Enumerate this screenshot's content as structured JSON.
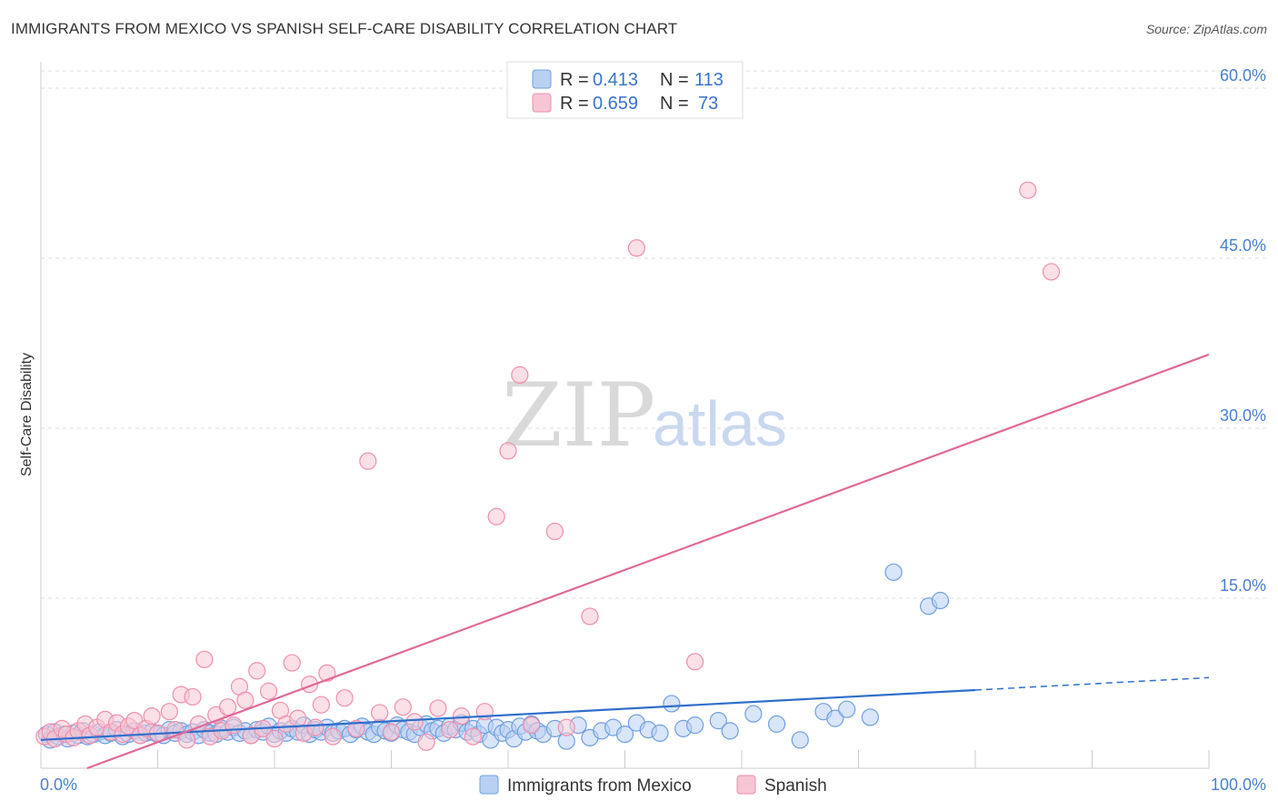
{
  "title": "IMMIGRANTS FROM MEXICO VS SPANISH SELF-CARE DISABILITY CORRELATION CHART",
  "source": "Source: ZipAtlas.com",
  "watermark": {
    "zip": "ZIP",
    "atlas": "atlas"
  },
  "legend": {
    "rows": [
      {
        "r_label": "R =",
        "r_value": "0.413",
        "n_label": "N =",
        "n_value": "113",
        "color": "#6fa0e0"
      },
      {
        "r_label": "R =",
        "r_value": "0.659",
        "n_label": "N =",
        "n_value": "73",
        "color": "#ef8fad"
      }
    ]
  },
  "chart_data": {
    "type": "scatter",
    "title": "IMMIGRANTS FROM MEXICO VS SPANISH SELF-CARE DISABILITY CORRELATION CHART",
    "xlabel": "",
    "ylabel": "Self-Care Disability",
    "xlim": [
      0,
      100
    ],
    "ylim": [
      0,
      63
    ],
    "x_tick_labels": [
      "0.0%",
      "100.0%"
    ],
    "y_ticks": [
      15,
      30,
      45,
      60
    ],
    "y_tick_labels": [
      "15.0%",
      "30.0%",
      "45.0%",
      "60.0%"
    ],
    "colors": {
      "mexico_fill": "#b9d0f2",
      "mexico_stroke": "#6fa0e0",
      "mexico_line": "#2f6fcc",
      "spanish_fill": "#f7c6d4",
      "spanish_stroke": "#ef8fad",
      "spanish_line": "#e0699a"
    },
    "series": [
      {
        "name": "Immigrants from Mexico",
        "r": 0.413,
        "n": 113,
        "trend": {
          "x0": 0,
          "y0": 2.5,
          "x1": 80,
          "y1": 6.9,
          "dashed_to_x": 100,
          "dashed_to_y": 8.0
        },
        "points": [
          [
            0.5,
            3.0
          ],
          [
            0.8,
            2.5
          ],
          [
            1.2,
            3.2
          ],
          [
            1.5,
            2.8
          ],
          [
            2.0,
            3.0
          ],
          [
            2.3,
            2.6
          ],
          [
            2.8,
            3.1
          ],
          [
            3.2,
            2.9
          ],
          [
            3.6,
            3.3
          ],
          [
            4.0,
            2.8
          ],
          [
            4.5,
            3.0
          ],
          [
            5.0,
            3.2
          ],
          [
            5.5,
            2.9
          ],
          [
            6.0,
            3.1
          ],
          [
            6.5,
            3.4
          ],
          [
            7.0,
            2.8
          ],
          [
            7.5,
            3.0
          ],
          [
            8.0,
            3.3
          ],
          [
            8.5,
            2.9
          ],
          [
            9.0,
            3.1
          ],
          [
            9.5,
            3.2
          ],
          [
            10.0,
            3.0
          ],
          [
            10.5,
            2.9
          ],
          [
            11.0,
            3.4
          ],
          [
            11.5,
            3.1
          ],
          [
            12.0,
            3.3
          ],
          [
            12.5,
            3.0
          ],
          [
            13.0,
            3.2
          ],
          [
            13.5,
            2.9
          ],
          [
            14.0,
            3.4
          ],
          [
            14.5,
            3.1
          ],
          [
            15.0,
            3.0
          ],
          [
            15.5,
            3.5
          ],
          [
            16.0,
            3.2
          ],
          [
            16.5,
            3.6
          ],
          [
            17.0,
            3.1
          ],
          [
            17.5,
            3.3
          ],
          [
            18.0,
            2.9
          ],
          [
            18.5,
            3.4
          ],
          [
            19.0,
            3.2
          ],
          [
            19.5,
            3.7
          ],
          [
            20.0,
            3.0
          ],
          [
            20.5,
            3.3
          ],
          [
            21.0,
            3.1
          ],
          [
            21.5,
            3.5
          ],
          [
            22.0,
            3.2
          ],
          [
            22.5,
            3.8
          ],
          [
            23.0,
            3.0
          ],
          [
            23.5,
            3.4
          ],
          [
            24.0,
            3.2
          ],
          [
            24.5,
            3.6
          ],
          [
            25.0,
            3.1
          ],
          [
            25.5,
            3.3
          ],
          [
            26.0,
            3.5
          ],
          [
            26.5,
            3.0
          ],
          [
            27.0,
            3.4
          ],
          [
            27.5,
            3.7
          ],
          [
            28.0,
            3.2
          ],
          [
            28.5,
            3.0
          ],
          [
            29.0,
            3.6
          ],
          [
            29.5,
            3.3
          ],
          [
            30.0,
            3.1
          ],
          [
            30.5,
            3.8
          ],
          [
            31.0,
            3.4
          ],
          [
            31.5,
            3.2
          ],
          [
            32.0,
            3.0
          ],
          [
            32.5,
            3.6
          ],
          [
            33.0,
            3.9
          ],
          [
            33.5,
            3.3
          ],
          [
            34.0,
            3.5
          ],
          [
            34.5,
            3.1
          ],
          [
            35.0,
            3.7
          ],
          [
            35.5,
            3.4
          ],
          [
            36.0,
            4.0
          ],
          [
            36.5,
            3.2
          ],
          [
            37.0,
            3.5
          ],
          [
            37.5,
            3.0
          ],
          [
            38.0,
            3.8
          ],
          [
            38.5,
            2.5
          ],
          [
            39.0,
            3.6
          ],
          [
            39.5,
            3.1
          ],
          [
            40.0,
            3.4
          ],
          [
            40.5,
            2.6
          ],
          [
            41.0,
            3.7
          ],
          [
            41.5,
            3.2
          ],
          [
            42.0,
            3.9
          ],
          [
            42.5,
            3.3
          ],
          [
            43.0,
            3.0
          ],
          [
            44.0,
            3.5
          ],
          [
            45.0,
            2.4
          ],
          [
            46.0,
            3.8
          ],
          [
            47.0,
            2.7
          ],
          [
            48.0,
            3.3
          ],
          [
            49.0,
            3.6
          ],
          [
            50.0,
            3.0
          ],
          [
            51.0,
            4.0
          ],
          [
            52.0,
            3.4
          ],
          [
            53.0,
            3.1
          ],
          [
            54.0,
            5.7
          ],
          [
            55.0,
            3.5
          ],
          [
            56.0,
            3.8
          ],
          [
            58.0,
            4.2
          ],
          [
            59.0,
            3.3
          ],
          [
            61.0,
            4.8
          ],
          [
            63.0,
            3.9
          ],
          [
            65.0,
            2.5
          ],
          [
            67.0,
            5.0
          ],
          [
            68.0,
            4.4
          ],
          [
            69.0,
            5.2
          ],
          [
            71.0,
            4.5
          ],
          [
            73.0,
            17.3
          ],
          [
            76.0,
            14.3
          ],
          [
            77.0,
            14.8
          ]
        ]
      },
      {
        "name": "Spanish",
        "r": 0.659,
        "n": 73,
        "trend": {
          "x0": 0,
          "y0": -1.5,
          "x1": 100,
          "y1": 36.5
        },
        "points": [
          [
            0.3,
            2.8
          ],
          [
            0.8,
            3.2
          ],
          [
            1.2,
            2.6
          ],
          [
            1.8,
            3.5
          ],
          [
            2.2,
            3.0
          ],
          [
            2.8,
            2.7
          ],
          [
            3.2,
            3.3
          ],
          [
            3.8,
            3.9
          ],
          [
            4.2,
            2.9
          ],
          [
            4.8,
            3.6
          ],
          [
            5.5,
            4.3
          ],
          [
            6.0,
            3.2
          ],
          [
            6.5,
            4.0
          ],
          [
            7.0,
            3.0
          ],
          [
            7.5,
            3.7
          ],
          [
            8.0,
            4.2
          ],
          [
            8.5,
            2.9
          ],
          [
            9.0,
            3.5
          ],
          [
            9.5,
            4.6
          ],
          [
            10.0,
            3.1
          ],
          [
            11.0,
            5.0
          ],
          [
            11.5,
            3.4
          ],
          [
            12.0,
            6.5
          ],
          [
            12.5,
            2.5
          ],
          [
            13.0,
            6.3
          ],
          [
            13.5,
            3.9
          ],
          [
            14.0,
            9.6
          ],
          [
            14.5,
            2.8
          ],
          [
            15.0,
            4.7
          ],
          [
            15.5,
            3.3
          ],
          [
            16.0,
            5.4
          ],
          [
            16.5,
            3.8
          ],
          [
            17.0,
            7.2
          ],
          [
            17.5,
            6.0
          ],
          [
            18.0,
            2.9
          ],
          [
            18.5,
            8.6
          ],
          [
            19.0,
            3.5
          ],
          [
            19.5,
            6.8
          ],
          [
            20.0,
            2.6
          ],
          [
            20.5,
            5.1
          ],
          [
            21.0,
            3.9
          ],
          [
            21.5,
            9.3
          ],
          [
            22.0,
            4.4
          ],
          [
            22.5,
            3.1
          ],
          [
            23.0,
            7.4
          ],
          [
            23.5,
            3.6
          ],
          [
            24.0,
            5.6
          ],
          [
            24.5,
            8.4
          ],
          [
            25.0,
            2.8
          ],
          [
            26.0,
            6.2
          ],
          [
            27.0,
            3.5
          ],
          [
            28.0,
            27.1
          ],
          [
            29.0,
            4.9
          ],
          [
            30.0,
            3.2
          ],
          [
            31.0,
            5.4
          ],
          [
            32.0,
            4.1
          ],
          [
            33.0,
            2.3
          ],
          [
            34.0,
            5.3
          ],
          [
            35.0,
            3.4
          ],
          [
            36.0,
            4.6
          ],
          [
            37.0,
            2.8
          ],
          [
            38.0,
            5.0
          ],
          [
            39.0,
            22.2
          ],
          [
            40.0,
            28.0
          ],
          [
            41.0,
            34.7
          ],
          [
            42.0,
            3.8
          ],
          [
            44.0,
            20.9
          ],
          [
            45.0,
            3.6
          ],
          [
            47.0,
            13.4
          ],
          [
            51.0,
            45.9
          ],
          [
            56.0,
            9.4
          ],
          [
            84.5,
            51.0
          ],
          [
            86.5,
            43.8
          ]
        ]
      }
    ]
  },
  "bottom_legend": [
    {
      "label": "Immigrants from Mexico"
    },
    {
      "label": "Spanish"
    }
  ]
}
